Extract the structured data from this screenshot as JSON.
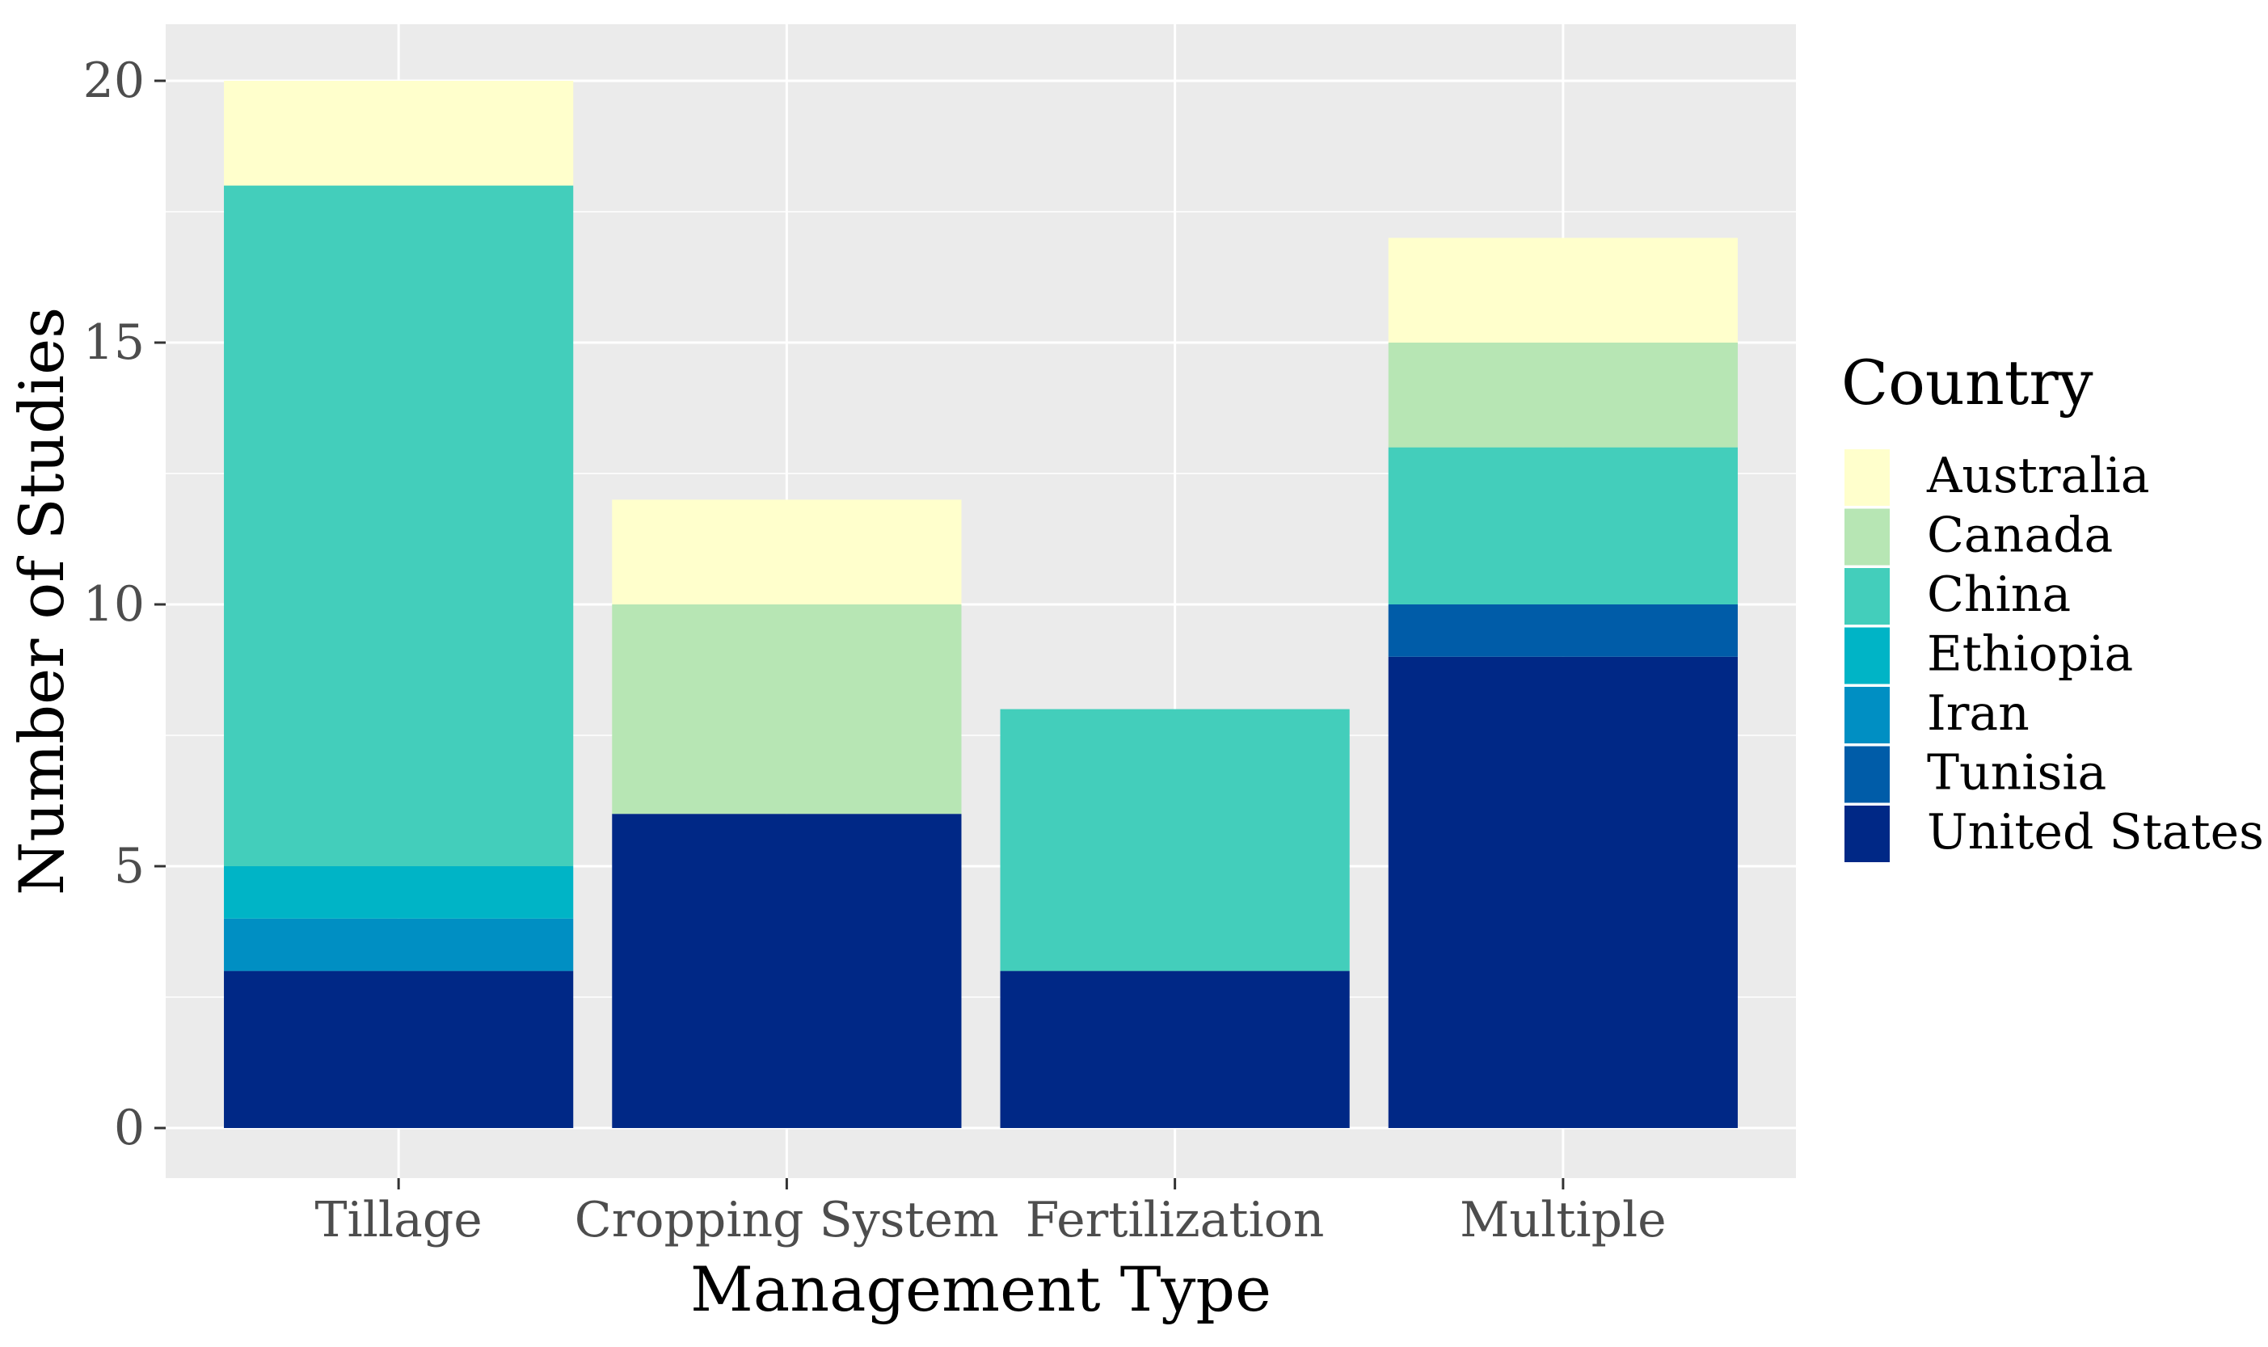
{
  "chart_data": {
    "type": "bar",
    "stacked": true,
    "title": "",
    "xlabel": "Management Type",
    "ylabel": "Number of Studies",
    "ylim": [
      0,
      21
    ],
    "yticks": [
      0,
      5,
      10,
      15,
      20
    ],
    "grid": true,
    "legend_position": "right",
    "legend_title": "Country",
    "categories": [
      "Tillage",
      "Cropping System",
      "Fertilization",
      "Multiple"
    ],
    "series": [
      {
        "name": "Australia",
        "color": "#ffffcc",
        "values": [
          2,
          2,
          0,
          2
        ]
      },
      {
        "name": "Canada",
        "color": "#b7e6b4",
        "values": [
          0,
          4,
          0,
          2
        ]
      },
      {
        "name": "China",
        "color": "#43cebb",
        "values": [
          13,
          0,
          5,
          3
        ]
      },
      {
        "name": "Ethiopia",
        "color": "#00b4c6",
        "values": [
          1,
          0,
          0,
          0
        ]
      },
      {
        "name": "Iran",
        "color": "#008fc3",
        "values": [
          1,
          0,
          0,
          0
        ]
      },
      {
        "name": "Tunisia",
        "color": "#005ca8",
        "values": [
          0,
          0,
          0,
          1
        ]
      },
      {
        "name": "United States",
        "color": "#002886",
        "values": [
          3,
          6,
          3,
          9
        ]
      }
    ],
    "panel_color": "#ebebeb",
    "grid_color": "#ffffff"
  }
}
